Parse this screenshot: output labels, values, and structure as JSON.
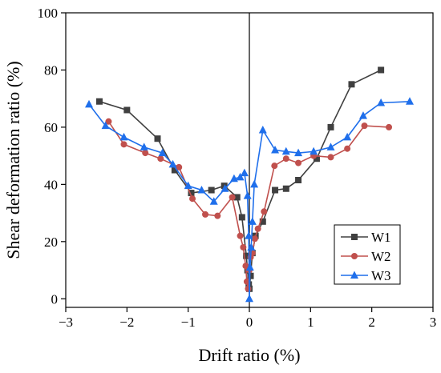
{
  "chart_data": {
    "type": "line",
    "title": "",
    "xlabel": "Drift ratio (%)",
    "ylabel": "Shear deformation ratio (%)",
    "xlim": [
      -3,
      3
    ],
    "ylim": [
      -3,
      100
    ],
    "xticks": [
      -3,
      -2,
      -1,
      0,
      1,
      2,
      3
    ],
    "yticks": [
      0,
      20,
      40,
      60,
      80,
      100
    ],
    "xtick_labels": [
      "−3",
      "−2",
      "−1",
      "0",
      "1",
      "2",
      "3"
    ],
    "ytick_labels": [
      "0",
      "20",
      "40",
      "60",
      "80",
      "100"
    ],
    "grid": false,
    "legend_position": "bottom-right",
    "series": [
      {
        "name": "W1",
        "color": "#404040",
        "marker": "square",
        "x": [
          -2.45,
          -2.0,
          -1.5,
          -1.22,
          -0.95,
          -0.62,
          -0.41,
          -0.2,
          -0.12,
          -0.05,
          -0.03,
          -0.01,
          0.0,
          0.02,
          0.05,
          0.1,
          0.22,
          0.42,
          0.6,
          0.8,
          1.1,
          1.33,
          1.67,
          2.15
        ],
        "y": [
          69,
          66,
          56,
          45,
          37,
          38,
          39.5,
          35.5,
          28.5,
          15,
          10,
          5,
          3.5,
          8,
          16,
          22,
          27,
          38,
          38.5,
          41.5,
          49,
          60,
          75,
          80
        ]
      },
      {
        "name": "W2",
        "color": "#c0504d",
        "marker": "circle",
        "x": [
          -2.3,
          -2.05,
          -1.7,
          -1.45,
          -1.15,
          -0.93,
          -0.72,
          -0.52,
          -0.28,
          -0.15,
          -0.1,
          -0.06,
          -0.04,
          -0.02,
          0.0,
          0.02,
          0.05,
          0.09,
          0.14,
          0.24,
          0.41,
          0.6,
          0.8,
          1.05,
          1.33,
          1.6,
          1.88,
          2.28
        ],
        "y": [
          62,
          54,
          51,
          49,
          46,
          35,
          29.5,
          29,
          35.5,
          22,
          18,
          11.5,
          6,
          3.5,
          10,
          14.5,
          16,
          21,
          24.5,
          30.5,
          46.5,
          49,
          47.5,
          50,
          49.5,
          52.5,
          60.5,
          60
        ]
      },
      {
        "name": "W3",
        "color": "#1f6feb",
        "marker": "triangle",
        "x": [
          -2.62,
          -2.35,
          -2.05,
          -1.72,
          -1.42,
          -1.25,
          -1.0,
          -0.78,
          -0.58,
          -0.4,
          -0.25,
          -0.15,
          -0.08,
          -0.03,
          -0.01,
          0.0,
          0.01,
          0.03,
          0.05,
          0.08,
          0.22,
          0.42,
          0.6,
          0.8,
          1.05,
          1.33,
          1.6,
          1.86,
          2.15,
          2.62
        ],
        "y": [
          68,
          60.5,
          56.5,
          53,
          51,
          47,
          39.5,
          38,
          34,
          38.5,
          42,
          42.5,
          44,
          36,
          22,
          0,
          11,
          18,
          27,
          40,
          59,
          52,
          51.5,
          51,
          51.5,
          53,
          56.5,
          64,
          68.5,
          69
        ]
      }
    ]
  }
}
